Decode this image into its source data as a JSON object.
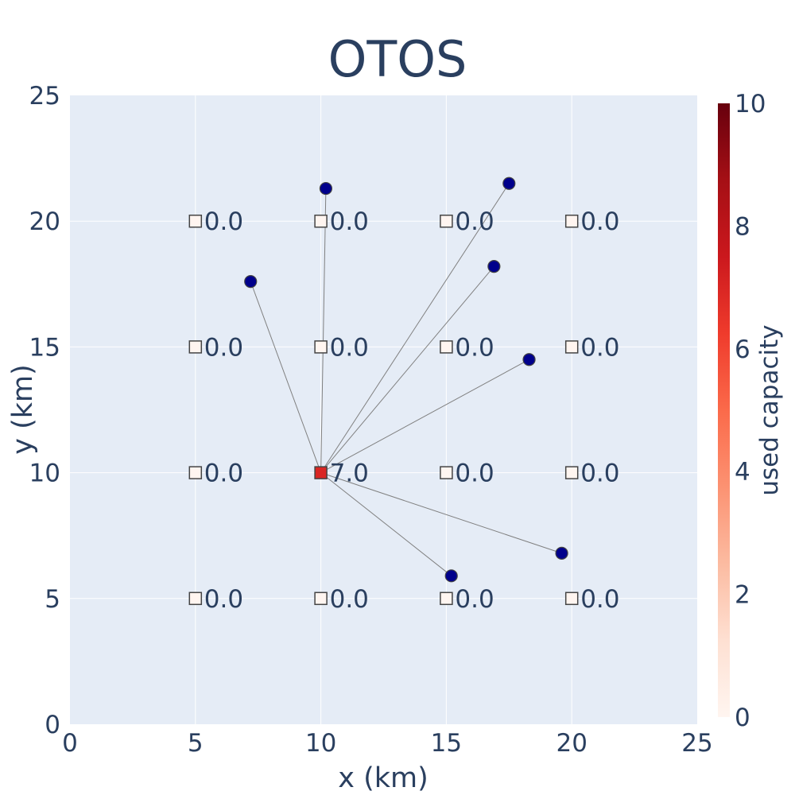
{
  "chart_data": {
    "type": "scatter",
    "title": "OTOS",
    "xlabel": "x (km)",
    "ylabel": "y (km)",
    "xlim": [
      0,
      25
    ],
    "ylim": [
      0,
      25
    ],
    "xticks": [
      "0",
      "5",
      "10",
      "15",
      "20",
      "25"
    ],
    "yticks": [
      "0",
      "5",
      "10",
      "15",
      "20",
      "25"
    ],
    "grid": true,
    "colors": {
      "plot_bg": "#e5ecf6",
      "grid": "#ffffff",
      "text": "#2a3f5f",
      "customer": "#00008b",
      "link": "#808080",
      "marker_outline": "#444444"
    },
    "facilities": [
      {
        "x": 5,
        "y": 5,
        "used": 0,
        "label": "0.0"
      },
      {
        "x": 10,
        "y": 5,
        "used": 0,
        "label": "0.0"
      },
      {
        "x": 15,
        "y": 5,
        "used": 0,
        "label": "0.0"
      },
      {
        "x": 20,
        "y": 5,
        "used": 0,
        "label": "0.0"
      },
      {
        "x": 5,
        "y": 10,
        "used": 0,
        "label": "0.0"
      },
      {
        "x": 10,
        "y": 10,
        "used": 7,
        "label": "7.0"
      },
      {
        "x": 15,
        "y": 10,
        "used": 0,
        "label": "0.0"
      },
      {
        "x": 20,
        "y": 10,
        "used": 0,
        "label": "0.0"
      },
      {
        "x": 5,
        "y": 15,
        "used": 0,
        "label": "0.0"
      },
      {
        "x": 10,
        "y": 15,
        "used": 0,
        "label": "0.0"
      },
      {
        "x": 15,
        "y": 15,
        "used": 0,
        "label": "0.0"
      },
      {
        "x": 20,
        "y": 15,
        "used": 0,
        "label": "0.0"
      },
      {
        "x": 5,
        "y": 20,
        "used": 0,
        "label": "0.0"
      },
      {
        "x": 10,
        "y": 20,
        "used": 0,
        "label": "0.0"
      },
      {
        "x": 15,
        "y": 20,
        "used": 0,
        "label": "0.0"
      },
      {
        "x": 20,
        "y": 20,
        "used": 0,
        "label": "0.0"
      }
    ],
    "customers": [
      {
        "x": 10.2,
        "y": 21.3,
        "assigned": [
          10,
          10
        ]
      },
      {
        "x": 17.5,
        "y": 21.5,
        "assigned": [
          10,
          10
        ]
      },
      {
        "x": 7.2,
        "y": 17.6,
        "assigned": [
          10,
          10
        ]
      },
      {
        "x": 16.9,
        "y": 18.2,
        "assigned": [
          10,
          10
        ]
      },
      {
        "x": 18.3,
        "y": 14.5,
        "assigned": [
          10,
          10
        ]
      },
      {
        "x": 19.6,
        "y": 6.8,
        "assigned": [
          10,
          10
        ]
      },
      {
        "x": 15.2,
        "y": 5.9,
        "assigned": [
          10,
          10
        ]
      }
    ],
    "colorbar": {
      "title": "used capacity",
      "range": [
        0,
        10
      ],
      "ticks": [
        "0",
        "2",
        "4",
        "6",
        "8",
        "10"
      ],
      "colorscale": [
        "#fff5f0",
        "#fee0d2",
        "#fcbba1",
        "#fc9272",
        "#fb6a4a",
        "#ef3b2c",
        "#cb181d",
        "#a50f15",
        "#67000d"
      ]
    }
  }
}
